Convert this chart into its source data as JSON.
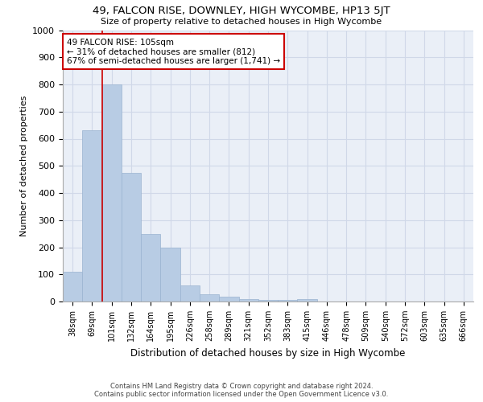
{
  "title": "49, FALCON RISE, DOWNLEY, HIGH WYCOMBE, HP13 5JT",
  "subtitle": "Size of property relative to detached houses in High Wycombe",
  "xlabel": "Distribution of detached houses by size in High Wycombe",
  "ylabel": "Number of detached properties",
  "footer_line1": "Contains HM Land Registry data © Crown copyright and database right 2024.",
  "footer_line2": "Contains public sector information licensed under the Open Government Licence v3.0.",
  "categories": [
    "38sqm",
    "69sqm",
    "101sqm",
    "132sqm",
    "164sqm",
    "195sqm",
    "226sqm",
    "258sqm",
    "289sqm",
    "321sqm",
    "352sqm",
    "383sqm",
    "415sqm",
    "446sqm",
    "478sqm",
    "509sqm",
    "540sqm",
    "572sqm",
    "603sqm",
    "635sqm",
    "666sqm"
  ],
  "values": [
    110,
    630,
    800,
    475,
    250,
    200,
    60,
    28,
    17,
    10,
    5,
    5,
    10,
    0,
    0,
    0,
    0,
    0,
    0,
    0,
    0
  ],
  "bar_color": "#b8cce4",
  "bar_edge_color": "#9ab3d0",
  "grid_color": "#d0d8e8",
  "background_color": "#eaeff7",
  "vline_x_index": 2,
  "vline_color": "#cc0000",
  "annotation_line1": "49 FALCON RISE: 105sqm",
  "annotation_line2": "← 31% of detached houses are smaller (812)",
  "annotation_line3": "67% of semi-detached houses are larger (1,741) →",
  "annotation_box_color": "#ffffff",
  "annotation_box_edge_color": "#cc0000",
  "ylim": [
    0,
    1000
  ],
  "yticks": [
    0,
    100,
    200,
    300,
    400,
    500,
    600,
    700,
    800,
    900,
    1000
  ]
}
